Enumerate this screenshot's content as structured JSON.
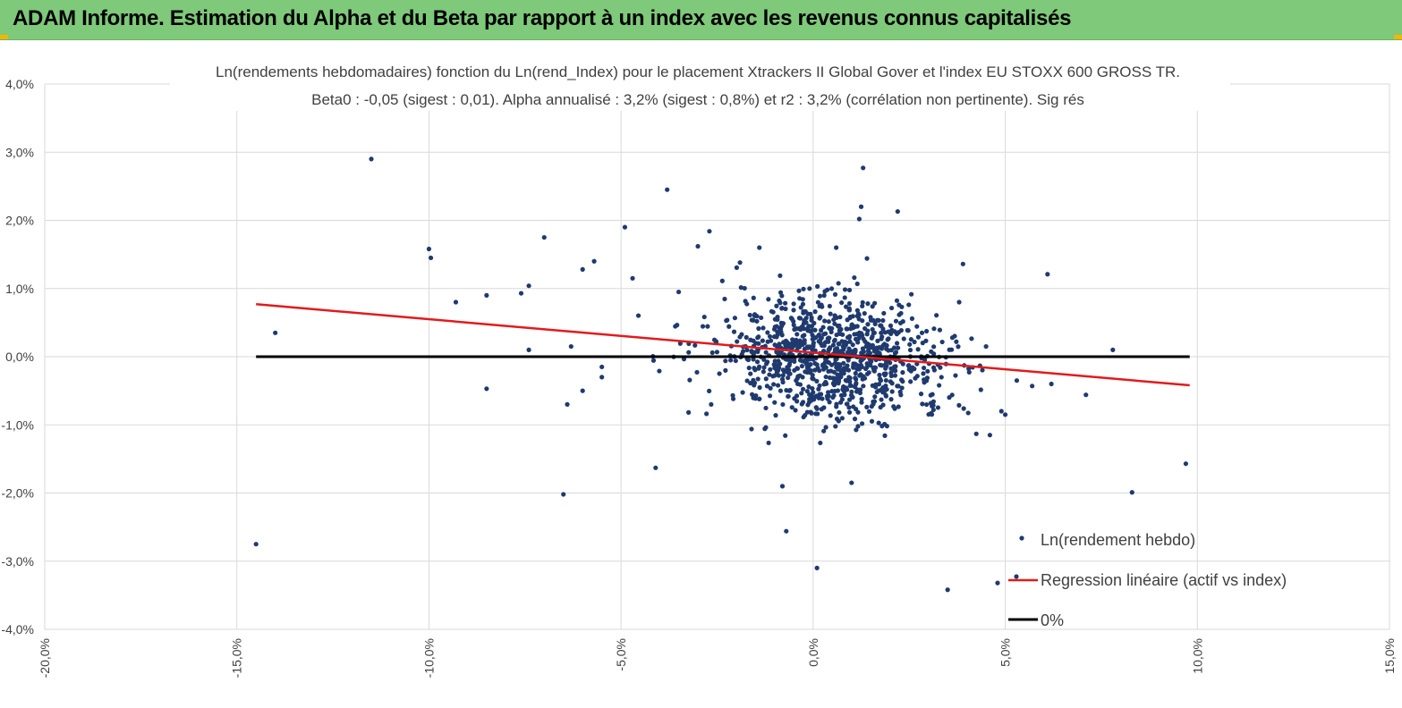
{
  "header": {
    "title": "ADAM Informe. Estimation du Alpha et du Beta par rapport à un index avec les revenus connus capitalisés"
  },
  "colors": {
    "header_bg": "#7ec97a",
    "points": "#1f3a6e",
    "regression": "#e31a1c",
    "zero_line": "#000000",
    "grid": "#d9d9d9"
  },
  "chart_data": {
    "type": "scatter",
    "title_line1": "Ln(rendements hebdomadaires) fonction du Ln(rend_Index) pour le placement Xtrackers II Global Gover et l'index EU STOXX 600 GROSS TR.",
    "title_line2": "Beta0 : -0,05 (sigest : 0,01). Alpha annualisé : 3,2% (sigest : 0,8%) et r2 : 3,2% (corrélation non pertinente). Sig rés",
    "xlim": [
      -20,
      15
    ],
    "ylim": [
      -4,
      4
    ],
    "x_ticks": [
      -20,
      -15,
      -10,
      -5,
      0,
      5,
      10,
      15
    ],
    "y_ticks": [
      -4,
      -3,
      -2,
      -1,
      0,
      1,
      2,
      3,
      4
    ],
    "x_tick_labels": [
      "-20,0%",
      "-15,0%",
      "-10,0%",
      "-5,0%",
      "0,0%",
      "5,0%",
      "10,0%",
      "15,0%"
    ],
    "y_tick_labels": [
      "-4,0%",
      "-3,0%",
      "-2,0%",
      "-1,0%",
      "0,0%",
      "1,0%",
      "2,0%",
      "3,0%",
      "4,0%"
    ],
    "legend": {
      "position": "bottom-right",
      "entries": [
        "Ln(rendement hebdo)",
        "Regression linéaire (actif vs index)",
        "0%"
      ]
    },
    "series": [
      {
        "name": "Ln(rendement hebdo)",
        "kind": "scatter",
        "note": "outlier points read from the chart; central cluster (~1000 weekly points) approximated around (0.4%, 0%) with sd ~1.5% / 0.45%",
        "points": [
          [
            -14.5,
            -2.75
          ],
          [
            -14,
            0.35
          ],
          [
            -11.5,
            2.9
          ],
          [
            -10,
            1.58
          ],
          [
            -9.95,
            1.45
          ],
          [
            -9.3,
            0.8
          ],
          [
            -8.5,
            0.9
          ],
          [
            -8.5,
            -0.47
          ],
          [
            -7.6,
            0.93
          ],
          [
            -7.4,
            1.04
          ],
          [
            -7.4,
            0.1
          ],
          [
            -7,
            1.75
          ],
          [
            -6.5,
            -2.02
          ],
          [
            -6.4,
            -0.7
          ],
          [
            -6.3,
            0.15
          ],
          [
            -6,
            1.28
          ],
          [
            -6,
            -0.5
          ],
          [
            -5.7,
            1.4
          ],
          [
            -5.5,
            -0.3
          ],
          [
            -5.5,
            -0.15
          ],
          [
            -4.9,
            1.9
          ],
          [
            -4.7,
            1.15
          ],
          [
            -4.1,
            -1.63
          ],
          [
            -3.8,
            2.45
          ],
          [
            -3.5,
            0.95
          ],
          [
            -3,
            1.62
          ],
          [
            -2.7,
            1.84
          ],
          [
            -1.4,
            1.6
          ],
          [
            -0.7,
            -2.56
          ],
          [
            -0.8,
            -1.9
          ],
          [
            0.1,
            -3.1
          ],
          [
            0.6,
            1.6
          ],
          [
            1.3,
            2.77
          ],
          [
            1.25,
            2.2
          ],
          [
            1.2,
            2.02
          ],
          [
            2.2,
            2.13
          ],
          [
            1.0,
            -1.85
          ],
          [
            3.5,
            -3.42
          ],
          [
            3.9,
            1.36
          ],
          [
            4.8,
            -3.32
          ],
          [
            4.9,
            -0.8
          ],
          [
            5.0,
            -0.85
          ],
          [
            6.1,
            1.21
          ],
          [
            6.2,
            -0.4
          ],
          [
            7.1,
            -0.56
          ],
          [
            7.8,
            0.1
          ],
          [
            8.3,
            -1.99
          ],
          [
            9.7,
            -1.57
          ],
          [
            5.3,
            -0.35
          ],
          [
            5.7,
            -0.43
          ],
          [
            4.6,
            -1.15
          ],
          [
            4.5,
            0.15
          ],
          [
            3.8,
            0.8
          ]
        ],
        "cluster": {
          "center": [
            0.4,
            0.0
          ],
          "sd": [
            1.5,
            0.45
          ],
          "count": 1000
        }
      },
      {
        "name": "Regression linéaire (actif vs index)",
        "kind": "line",
        "x": [
          -14.5,
          9.8
        ],
        "y": [
          0.77,
          -0.42
        ]
      },
      {
        "name": "0%",
        "kind": "line",
        "x": [
          -14.5,
          9.8
        ],
        "y": [
          0,
          0
        ]
      }
    ]
  }
}
